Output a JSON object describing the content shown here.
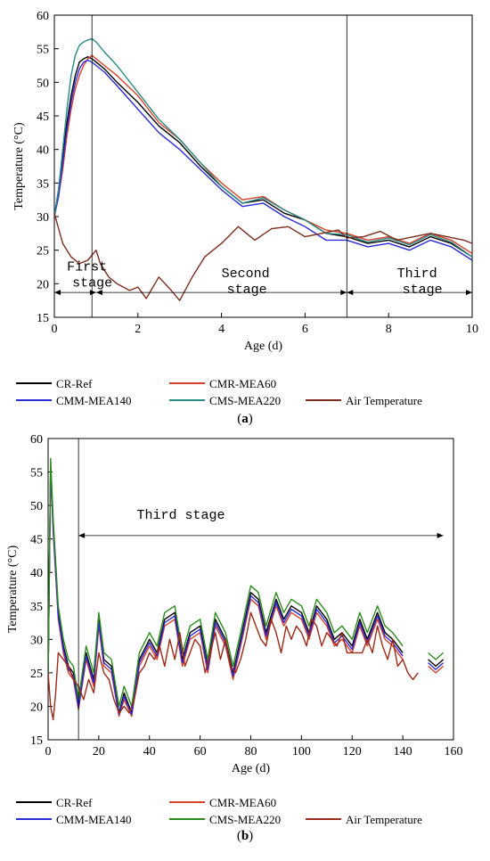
{
  "chart_data": [
    {
      "type": "line",
      "panel_label": "a",
      "xlabel": "Age (d)",
      "ylabel": "Temperature (°C)",
      "xlim": [
        0,
        10
      ],
      "ylim": [
        15,
        60
      ],
      "xticks": [
        0,
        2,
        4,
        6,
        8,
        10
      ],
      "yticks": [
        15,
        20,
        25,
        30,
        35,
        40,
        45,
        50,
        55,
        60
      ],
      "grid": false,
      "legend_position": "bottom",
      "stage_dividers": [
        0.9,
        7.0
      ],
      "stage_labels": [
        {
          "text": "First stage",
          "x": 0.3,
          "y": 22
        },
        {
          "text": "Second stage",
          "x": 4.0,
          "y": 21
        },
        {
          "text": "Third stage",
          "x": 8.2,
          "y": 21
        }
      ],
      "stage_arrows": [
        {
          "from": 0,
          "to": 1.0,
          "y": 18.7
        },
        {
          "from": 1.0,
          "to": 7.0,
          "y": 18.7
        },
        {
          "from": 7.0,
          "to": 10,
          "y": 18.7
        }
      ],
      "series": [
        {
          "name": "CR-Ref",
          "color": "#000000",
          "x": [
            0,
            0.1,
            0.2,
            0.3,
            0.4,
            0.5,
            0.6,
            0.7,
            0.8,
            0.9,
            1.0,
            1.2,
            1.5,
            2.0,
            2.5,
            3.0,
            3.5,
            4.0,
            4.5,
            5.0,
            5.5,
            6.0,
            6.5,
            7.0,
            7.5,
            8.0,
            8.5,
            9.0,
            9.5,
            10
          ],
          "y": [
            30,
            34,
            39,
            44,
            48,
            51,
            53,
            53.5,
            53.8,
            53.5,
            53,
            52,
            50,
            47,
            43.5,
            41,
            37.5,
            34.5,
            32,
            32.5,
            30.5,
            29.5,
            27.5,
            27,
            26,
            26.5,
            25.5,
            27,
            26,
            24
          ]
        },
        {
          "name": "CMR-MEA60",
          "color": "#d9412b",
          "x": [
            0,
            0.1,
            0.2,
            0.3,
            0.4,
            0.5,
            0.6,
            0.7,
            0.8,
            0.9,
            1.0,
            1.2,
            1.5,
            2.0,
            2.5,
            3.0,
            3.5,
            4.0,
            4.5,
            5.0,
            5.5,
            6.0,
            6.5,
            7.0,
            7.5,
            8.0,
            8.5,
            9.0,
            9.5,
            10
          ],
          "y": [
            30,
            33,
            37,
            42,
            46,
            49,
            51,
            52.5,
            53.5,
            54,
            53.5,
            52.5,
            51,
            48,
            44,
            41.5,
            38,
            35,
            32.5,
            33,
            31,
            29.5,
            28,
            27.5,
            26.5,
            27,
            26,
            27.5,
            26.5,
            24.5
          ]
        },
        {
          "name": "CMM-MEA140",
          "color": "#2b2bd6",
          "x": [
            0,
            0.1,
            0.2,
            0.3,
            0.4,
            0.5,
            0.6,
            0.7,
            0.8,
            0.9,
            1.0,
            1.2,
            1.5,
            2.0,
            2.5,
            3.0,
            3.5,
            4.0,
            4.5,
            5.0,
            5.5,
            6.0,
            6.5,
            7.0,
            7.5,
            8.0,
            8.5,
            9.0,
            9.5,
            10
          ],
          "y": [
            30,
            33,
            38,
            43,
            47,
            50,
            52,
            53,
            53.3,
            53,
            52.5,
            51.5,
            49.5,
            46,
            42.5,
            40,
            37,
            34,
            31.5,
            32,
            30,
            28.5,
            26.5,
            26.5,
            25.5,
            26,
            25,
            26.5,
            25.5,
            23.5
          ]
        },
        {
          "name": "CMS-MEA220",
          "color": "#2a8a86",
          "x": [
            0,
            0.1,
            0.2,
            0.3,
            0.4,
            0.5,
            0.6,
            0.7,
            0.8,
            0.9,
            1.0,
            1.2,
            1.5,
            2.0,
            2.5,
            3.0,
            3.5,
            4.0,
            4.5,
            5.0,
            5.5,
            6.0,
            6.5,
            7.0,
            7.5,
            8.0,
            8.5,
            9.0,
            9.5,
            10
          ],
          "y": [
            30,
            34,
            40,
            46,
            51,
            54,
            55.5,
            56,
            56.3,
            56.5,
            56,
            54.5,
            52.5,
            48.5,
            44.5,
            41.5,
            38,
            34.5,
            32,
            32.8,
            31,
            29.5,
            27.5,
            27.3,
            26.2,
            26.8,
            25.8,
            27.3,
            26.2,
            24
          ]
        },
        {
          "name": "Air Temperature",
          "color": "#7b2d1e",
          "x": [
            0,
            0.2,
            0.4,
            0.6,
            0.8,
            1.0,
            1.1,
            1.3,
            1.5,
            1.8,
            2.0,
            2.2,
            2.5,
            2.8,
            3.0,
            3.3,
            3.6,
            4.0,
            4.4,
            4.8,
            5.2,
            5.6,
            6.0,
            6.4,
            6.8,
            7.0,
            7.4,
            7.8,
            8.2,
            8.6,
            9.0,
            9.4,
            9.8,
            10
          ],
          "y": [
            30.5,
            26,
            24,
            23,
            23.5,
            25,
            23,
            21,
            20,
            19,
            19.5,
            17.8,
            21,
            19,
            17.5,
            21,
            24,
            26,
            28.5,
            26.5,
            28.2,
            28.5,
            27,
            27.5,
            28,
            26.8,
            27,
            27.8,
            26.5,
            27,
            27.5,
            27,
            26.5,
            26
          ]
        }
      ]
    },
    {
      "type": "line",
      "panel_label": "b",
      "xlabel": "Age (d)",
      "ylabel": "Temperature (°C)",
      "xlim": [
        0,
        160
      ],
      "ylim": [
        15,
        60
      ],
      "xticks": [
        0,
        20,
        40,
        60,
        80,
        100,
        120,
        140,
        160
      ],
      "yticks": [
        15,
        20,
        25,
        30,
        35,
        40,
        45,
        50,
        55,
        60
      ],
      "grid": false,
      "legend_position": "bottom",
      "stage_dividers": [
        12
      ],
      "stage_labels": [
        {
          "text": "Third stage",
          "x": 35,
          "y": 48
        }
      ],
      "stage_arrows": [
        {
          "from": 12,
          "to": 156,
          "y": 45.5
        }
      ],
      "series": [
        {
          "name": "CR-Ref",
          "color": "#000000",
          "x": [
            0,
            1,
            2,
            4,
            6,
            8,
            10,
            12,
            15,
            18,
            20,
            22,
            25,
            28,
            30,
            33,
            36,
            40,
            43,
            46,
            50,
            53,
            56,
            60,
            63,
            66,
            70,
            73,
            76,
            80,
            83,
            86,
            90,
            93,
            96,
            100,
            103,
            106,
            110,
            113,
            116,
            120,
            123,
            126,
            130,
            133,
            136,
            140,
            145,
            150,
            153,
            156
          ],
          "y": [
            24,
            56,
            47,
            34,
            29,
            26,
            25,
            20,
            28,
            24,
            33,
            27,
            26,
            19,
            22,
            19,
            27,
            30,
            28,
            33,
            34,
            27,
            31,
            32,
            26,
            33,
            30,
            25,
            30,
            37,
            36,
            31,
            36,
            33,
            35,
            34,
            31,
            35,
            33,
            30,
            31,
            29,
            33,
            30,
            34,
            31,
            30,
            28,
            null,
            27,
            26,
            27
          ]
        },
        {
          "name": "CMR-MEA60",
          "color": "#d9412b",
          "x": [
            0,
            1,
            2,
            4,
            6,
            8,
            10,
            12,
            15,
            18,
            20,
            22,
            25,
            28,
            30,
            33,
            36,
            40,
            43,
            46,
            50,
            53,
            56,
            60,
            63,
            66,
            70,
            73,
            76,
            80,
            83,
            86,
            90,
            93,
            96,
            100,
            103,
            106,
            110,
            113,
            116,
            120,
            123,
            126,
            130,
            133,
            136,
            140,
            145,
            150,
            153,
            156
          ],
          "y": [
            24,
            55,
            46,
            33,
            28,
            25,
            24,
            19.5,
            27,
            23,
            32,
            26,
            25,
            18.5,
            21,
            18.5,
            26,
            29,
            27,
            32,
            33,
            26,
            30,
            31,
            25,
            32,
            29,
            24,
            29,
            36,
            35,
            30,
            35,
            32,
            34,
            33,
            30,
            34,
            32,
            29,
            30,
            28,
            32,
            29,
            33,
            30,
            29,
            27,
            null,
            26,
            25,
            26
          ]
        },
        {
          "name": "CMM-MEA140",
          "color": "#2b2bd6",
          "x": [
            0,
            1,
            2,
            4,
            6,
            8,
            10,
            12,
            15,
            18,
            20,
            22,
            25,
            28,
            30,
            33,
            36,
            40,
            43,
            46,
            50,
            53,
            56,
            60,
            63,
            66,
            70,
            73,
            76,
            80,
            83,
            86,
            90,
            93,
            96,
            100,
            103,
            106,
            110,
            113,
            116,
            120,
            123,
            126,
            130,
            133,
            136,
            140,
            145,
            150,
            153,
            156
          ],
          "y": [
            24,
            55.5,
            46.5,
            33.5,
            28.5,
            25.5,
            24.5,
            19.8,
            27.5,
            23.5,
            32.5,
            26.5,
            25.5,
            18.8,
            21.5,
            18.8,
            26.5,
            29.5,
            27.5,
            32.5,
            33.5,
            26.5,
            30.5,
            31.5,
            25.5,
            32.5,
            29.5,
            24.5,
            29.5,
            36.5,
            35.5,
            30.5,
            35.5,
            32.5,
            34.5,
            33.5,
            30.5,
            34.5,
            32.5,
            29.5,
            30.5,
            28.5,
            32.5,
            29.5,
            33.5,
            30.5,
            29.5,
            27.5,
            null,
            26.5,
            25.5,
            26.5
          ]
        },
        {
          "name": "CMS-MEA220",
          "color": "#2e8b1e",
          "x": [
            0,
            1,
            2,
            4,
            6,
            8,
            10,
            12,
            15,
            18,
            20,
            22,
            25,
            28,
            30,
            33,
            36,
            40,
            43,
            46,
            50,
            53,
            56,
            60,
            63,
            66,
            70,
            73,
            76,
            80,
            83,
            86,
            90,
            93,
            96,
            100,
            103,
            106,
            110,
            113,
            116,
            120,
            123,
            126,
            130,
            133,
            136,
            140,
            145,
            150,
            153,
            156
          ],
          "y": [
            24,
            57,
            48,
            35,
            30,
            27,
            26,
            21,
            29,
            25,
            34,
            28,
            27,
            20,
            23,
            20,
            28,
            31,
            29,
            34,
            35,
            28,
            32,
            33,
            27,
            34,
            31,
            26,
            31,
            38,
            37,
            32,
            37,
            34,
            36,
            35,
            32,
            36,
            34,
            31,
            32,
            30,
            34,
            31,
            35,
            32,
            31,
            29,
            null,
            28,
            27,
            28
          ]
        },
        {
          "name": "Air Temperature",
          "color": "#9b2a1a",
          "x": [
            0,
            1,
            2,
            3,
            4,
            6,
            8,
            10,
            12,
            14,
            16,
            18,
            20,
            22,
            24,
            26,
            28,
            30,
            32,
            34,
            36,
            38,
            40,
            42,
            44,
            46,
            48,
            50,
            52,
            54,
            56,
            58,
            60,
            62,
            64,
            66,
            68,
            70,
            72,
            74,
            76,
            78,
            80,
            82,
            84,
            86,
            88,
            90,
            92,
            94,
            96,
            98,
            100,
            102,
            104,
            106,
            108,
            110,
            112,
            114,
            116,
            118,
            120,
            122,
            124,
            126,
            128,
            130,
            132,
            134,
            136,
            138,
            140,
            142,
            144,
            146
          ],
          "y": [
            25,
            20,
            18,
            22,
            28,
            27,
            26,
            24,
            23,
            21,
            24,
            22,
            28,
            25,
            24,
            21,
            19,
            20,
            19,
            21,
            25,
            26,
            28,
            27,
            29,
            26,
            30,
            27,
            31,
            26,
            28,
            30,
            29,
            25,
            28,
            31,
            27,
            30,
            26,
            25,
            27,
            30,
            34,
            32,
            30,
            29,
            33,
            31,
            28,
            32,
            30,
            32,
            31,
            29,
            33,
            32,
            29,
            31,
            30,
            29,
            31,
            28,
            28,
            28,
            28,
            30,
            28,
            32,
            29,
            27,
            30,
            26,
            27,
            25,
            24,
            25
          ]
        }
      ]
    }
  ],
  "legend_a": {
    "row1": [
      "CR-Ref",
      "CMR-MEA60"
    ],
    "row2": [
      "CMM-MEA140",
      "CMS-MEA220",
      "Air Temperature"
    ]
  },
  "legend_b": {
    "row1": [
      "CR-Ref",
      "CMR-MEA60"
    ],
    "row2": [
      "CMM-MEA140",
      "CMS-MEA220",
      "Air Temperature"
    ]
  }
}
